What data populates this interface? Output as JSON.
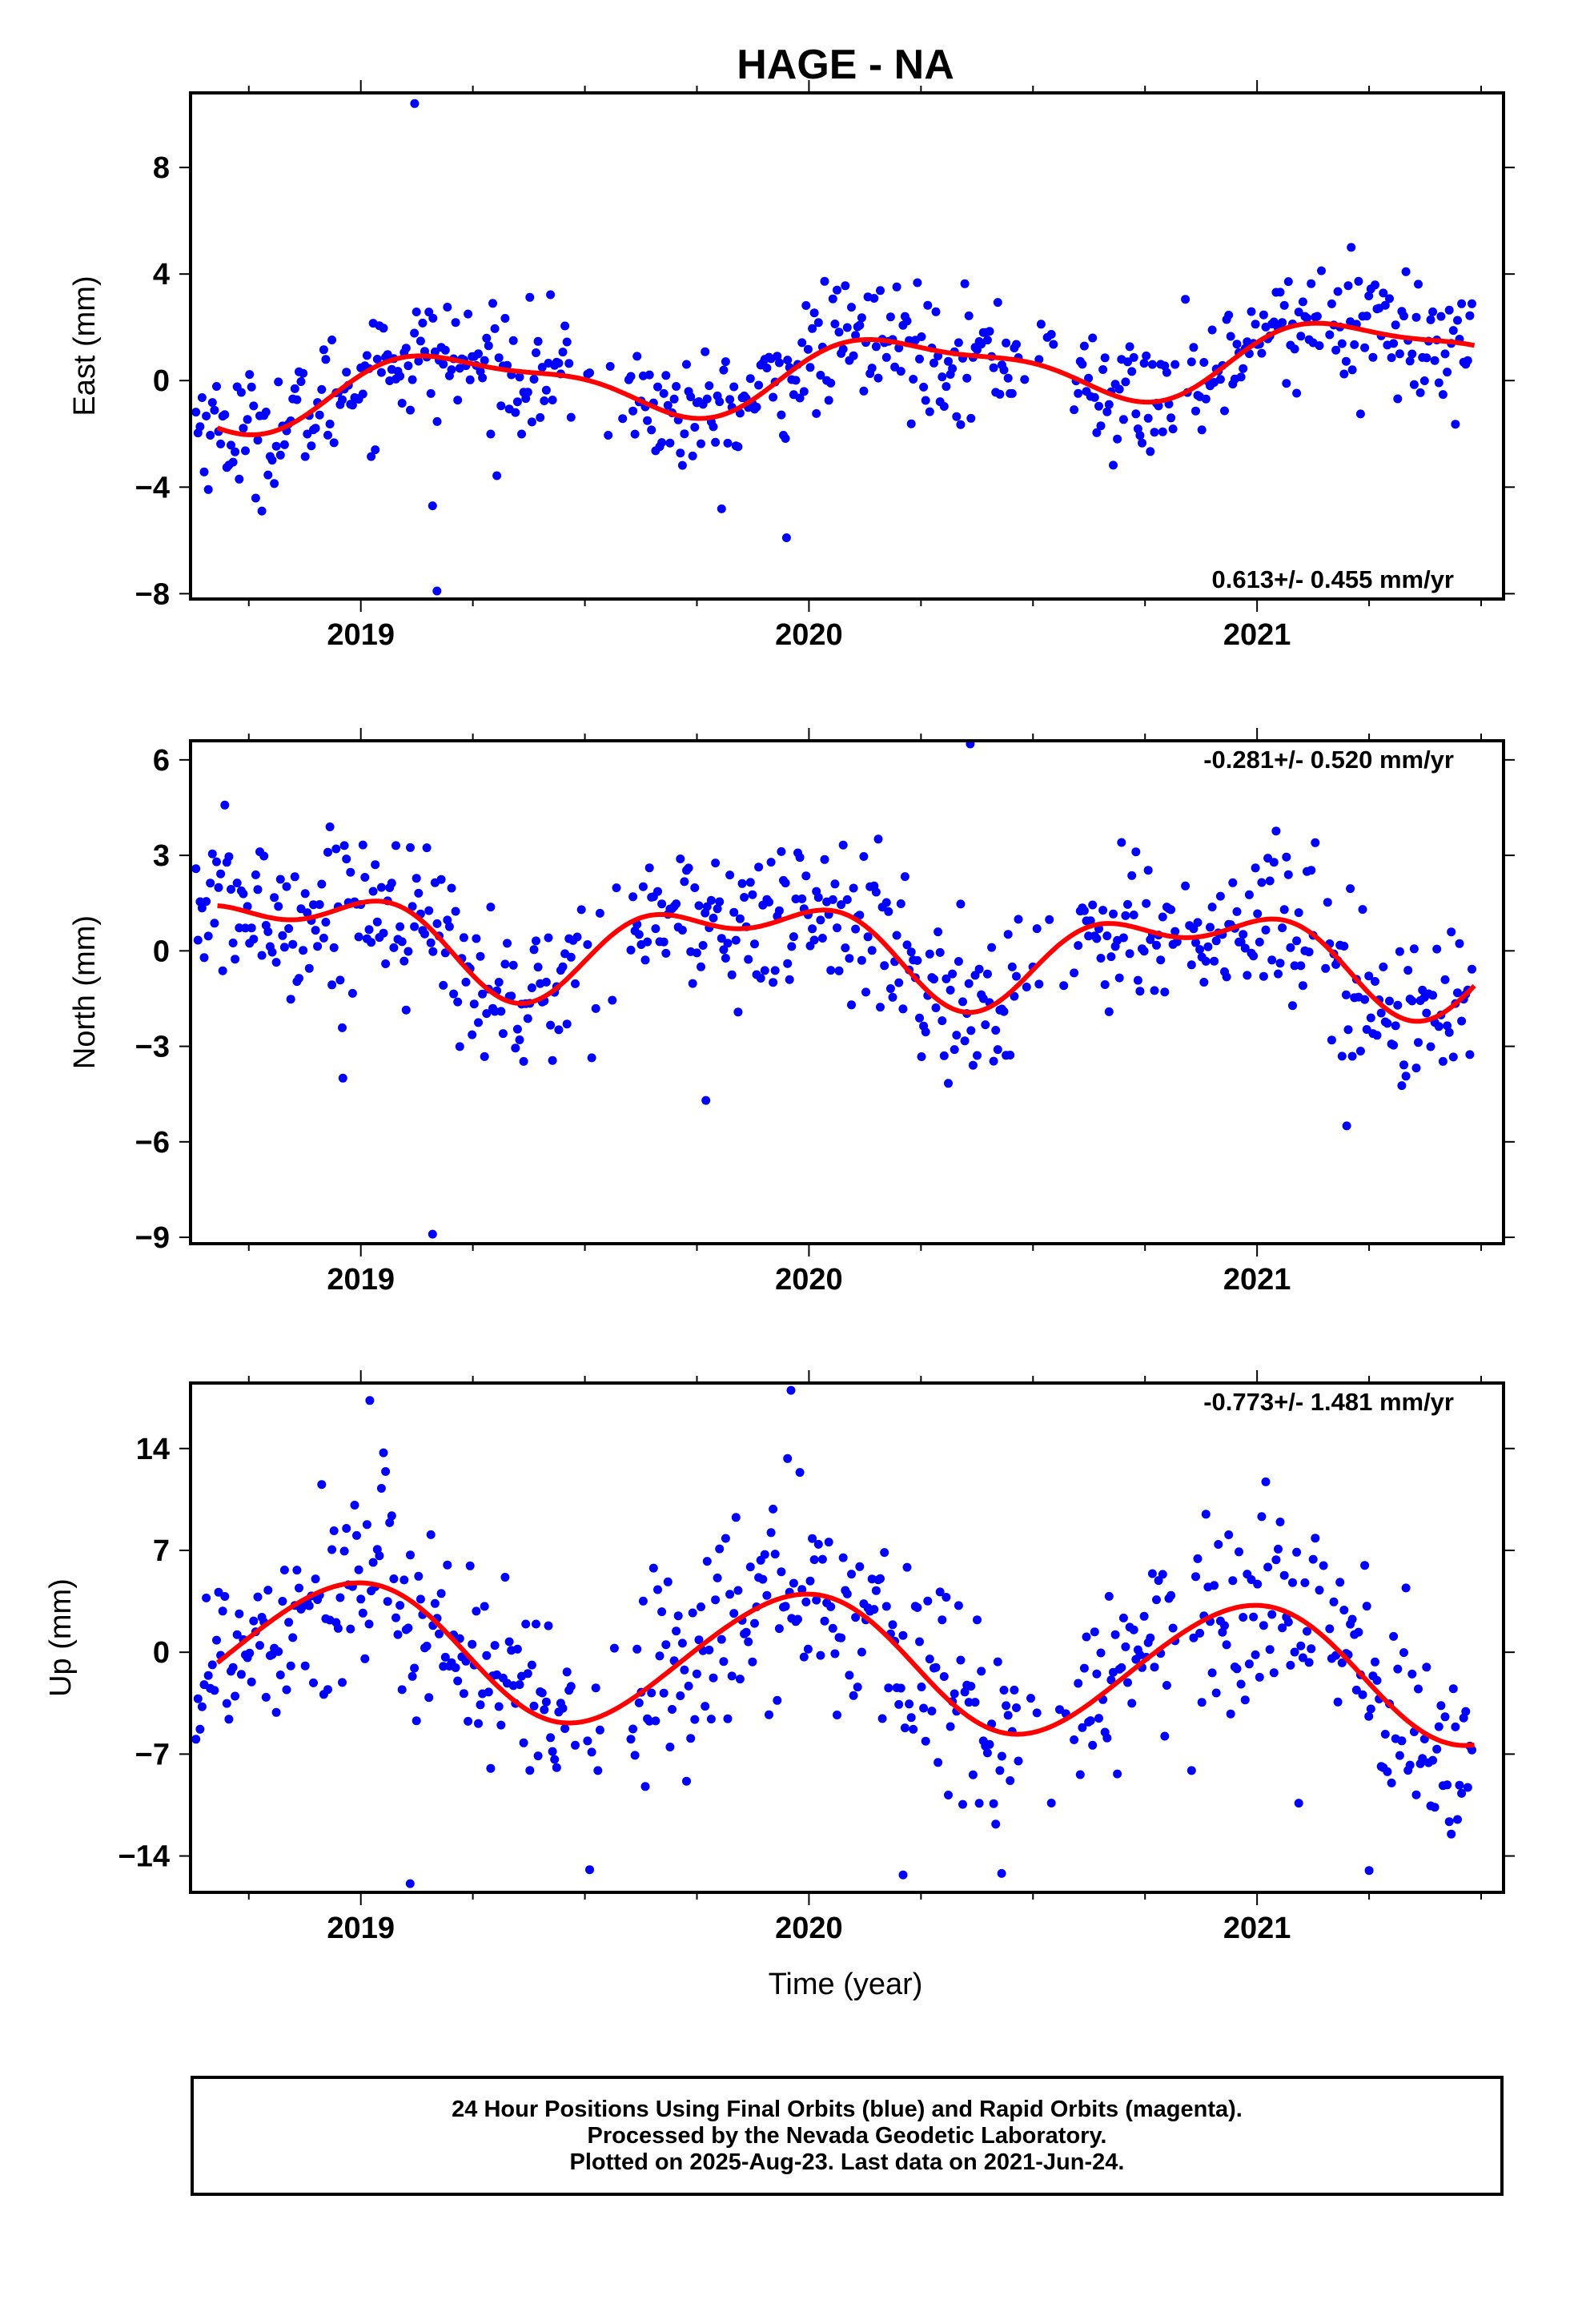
{
  "title": "HAGE - NA",
  "x_axis_label": "Time (year)",
  "footer": {
    "line1": "24 Hour Positions Using Final Orbits (blue) and Rapid Orbits (magenta).",
    "line2": "Processed by the Nevada Geodetic Laboratory.",
    "line3": "Plotted on 2025-Aug-23. Last data on 2021-Jun-24."
  },
  "colors": {
    "points": "#0000ff",
    "fit": "#ff0000",
    "axes": "#000000"
  },
  "chart_data": [
    {
      "type": "scatter",
      "name": "east",
      "ylabel": "East (mm)",
      "rate_annotation": "0.613+/- 0.455 mm/yr",
      "annotation_position": "bottom-right",
      "xlim": [
        2018.62,
        2021.55
      ],
      "ylim": [
        -8.2,
        10.8
      ],
      "x_ticks": [
        2019,
        2020,
        2021
      ],
      "y_ticks": [
        -8,
        -4,
        0,
        4,
        8
      ],
      "y_tick_labels": [
        "−8",
        "−4",
        "0",
        "4",
        "8"
      ],
      "grid": false,
      "trend": {
        "a": 0.613,
        "b": -0.6,
        "c": 1.2,
        "c2": 0.4,
        "phase": 0.2,
        "phase2": 1.0
      },
      "noise_sd": 1.15,
      "extra_points": [
        [
          2019.12,
          10.4
        ],
        [
          2019.17,
          -7.9
        ],
        [
          2019.95,
          -5.9
        ],
        [
          2021.21,
          5.0
        ],
        [
          2019.16,
          -4.7
        ]
      ],
      "series": [
        {
          "name": "24 Hour Positions (Final Orbits)",
          "points": "generated"
        },
        {
          "name": "fit",
          "line": "smooth"
        }
      ]
    },
    {
      "type": "scatter",
      "name": "north",
      "ylabel": "North (mm)",
      "rate_annotation": "-0.281+/- 0.520 mm/yr",
      "annotation_position": "top-right",
      "xlim": [
        2018.62,
        2021.55
      ],
      "ylim": [
        -9.2,
        6.6
      ],
      "x_ticks": [
        2019,
        2020,
        2021
      ],
      "y_ticks": [
        -9,
        -6,
        -3,
        0,
        3,
        6
      ],
      "y_tick_labels": [
        "−9",
        "−6",
        "−3",
        "0",
        "3",
        "6"
      ],
      "grid": false,
      "trend": {
        "a": -0.281,
        "b": 0.55,
        "c": 1.25,
        "c2": 0.75,
        "phase": 2.4,
        "phase2": 0.3
      },
      "noise_sd": 1.25,
      "extra_points": [
        [
          2019.16,
          -8.9
        ],
        [
          2020.36,
          6.5
        ],
        [
          2021.2,
          -5.5
        ],
        [
          2018.96,
          -4.0
        ],
        [
          2019.77,
          -4.7
        ]
      ],
      "series": [
        {
          "name": "24 Hour Positions (Final Orbits)",
          "points": "generated"
        },
        {
          "name": "fit",
          "line": "smooth"
        }
      ]
    },
    {
      "type": "scatter",
      "name": "up",
      "ylabel": "Up (mm)",
      "rate_annotation": "-0.773+/- 1.481 mm/yr",
      "annotation_position": "top-right",
      "xlim": [
        2018.62,
        2021.55
      ],
      "ylim": [
        -16.5,
        18.5
      ],
      "x_ticks": [
        2019,
        2020,
        2021
      ],
      "y_ticks": [
        -14,
        -7,
        0,
        7,
        14
      ],
      "y_tick_labels": [
        "−14",
        "−7",
        "0",
        "7",
        "14"
      ],
      "grid": false,
      "trend": {
        "a": -0.773,
        "b": 0.5,
        "c": 4.6,
        "c2": 0.3,
        "phase": 1.7,
        "phase2": 0.0
      },
      "noise_sd": 3.6,
      "extra_points": [
        [
          2019.02,
          17.3
        ],
        [
          2019.96,
          18.0
        ],
        [
          2019.11,
          -15.9
        ],
        [
          2020.21,
          -15.3
        ],
        [
          2020.43,
          -15.2
        ],
        [
          2021.25,
          -15.0
        ]
      ],
      "series": [
        {
          "name": "24 Hour Positions (Final Orbits)",
          "points": "generated"
        },
        {
          "name": "fit",
          "line": "smooth"
        }
      ]
    }
  ]
}
